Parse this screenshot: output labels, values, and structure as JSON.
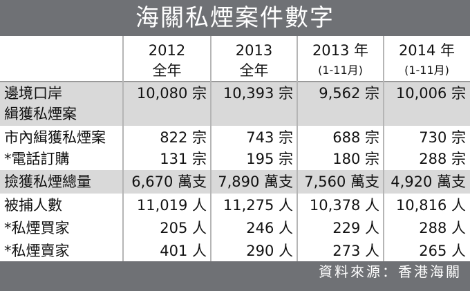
{
  "header": {
    "title": "海關私煙案件數字"
  },
  "table": {
    "columns": [
      [
        "2012",
        "全年"
      ],
      [
        "2013",
        "全年"
      ],
      [
        "2013 年",
        "(1-11月)"
      ],
      [
        "2014 年",
        "(1-11月)"
      ]
    ],
    "rows": [
      {
        "label": [
          "邊境口岸",
          "緝獲私煙案"
        ],
        "cells": [
          "10,080 宗",
          "10,393 宗",
          "9,562 宗",
          "10,006 宗"
        ]
      },
      {
        "label": [
          "市內緝獲私煙案"
        ],
        "cells": [
          "822 宗",
          "743 宗",
          "688 宗",
          "730 宗"
        ]
      },
      {
        "label": [
          "*電話訂購"
        ],
        "cells": [
          "131 宗",
          "195 宗",
          "180 宗",
          "288 宗"
        ]
      },
      {
        "label": [
          "撿獲私煙總量"
        ],
        "cells": [
          "6,670 萬支",
          "7,890 萬支",
          "7,560 萬支",
          "4,920 萬支"
        ]
      },
      {
        "label": [
          "被捕人數"
        ],
        "cells": [
          "11,019 人",
          "11,275 人",
          "10,378 人",
          "10,816 人"
        ]
      },
      {
        "label": [
          "*私煙買家"
        ],
        "cells": [
          "205 人",
          "246 人",
          "229 人",
          "288 人"
        ]
      },
      {
        "label": [
          "*私煙賣家"
        ],
        "cells": [
          "401 人",
          "290 人",
          "273 人",
          "265 人"
        ]
      }
    ]
  },
  "footer": {
    "source": "資料來源：香港海關"
  }
}
